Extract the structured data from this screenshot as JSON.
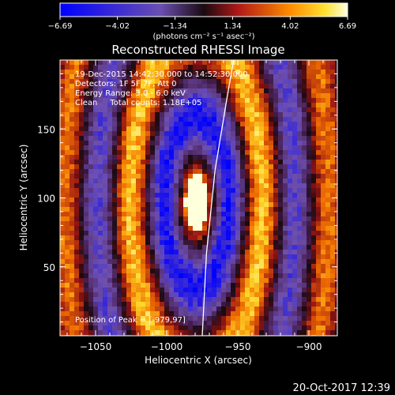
{
  "chart_data": {
    "type": "heatmap",
    "title": "Reconstructed RHESSI Image",
    "xlabel": "Heliocentric X (arcsec)",
    "ylabel": "Heliocentric Y (arcsec)",
    "xlim": [
      -1075,
      -880
    ],
    "ylim": [
      0,
      200
    ],
    "x_ticks": [
      -1050,
      -1000,
      -950,
      -900
    ],
    "x_tick_labels": [
      "−1050",
      "−1000",
      "−950",
      "−900"
    ],
    "y_ticks": [
      50,
      100,
      150
    ],
    "y_tick_labels": [
      "50",
      "100",
      "150"
    ],
    "colorbar": {
      "min": -6.69,
      "max": 6.69,
      "ticks": [
        -6.69,
        -4.02,
        -1.34,
        1.34,
        4.02,
        6.69
      ],
      "tick_labels": [
        "−6.69",
        "−4.02",
        "−1.34",
        "1.34",
        "4.02",
        "6.69"
      ],
      "unit_label": "(photons cm⁻² s⁻¹ asec⁻²)"
    },
    "annotations": [
      "19-Dec-2015 14:42:30.000 to 14:52:30.000",
      "Detectors: 1F 5F 7F, Att 0",
      "Energy Range: 3.0 - 6.0 keV",
      "Clean     Total counts: 1.18E+05"
    ],
    "peak_label": "Position of Peak = [-979,97]",
    "peak": [
      -979,
      97
    ],
    "limb_curve": [
      [
        -975,
        0
      ],
      [
        -972,
        60
      ],
      [
        -966,
        120
      ],
      [
        -958,
        170
      ],
      [
        -953,
        200
      ]
    ]
  },
  "footer": {
    "timestamp": "20-Oct-2017 12:39"
  }
}
